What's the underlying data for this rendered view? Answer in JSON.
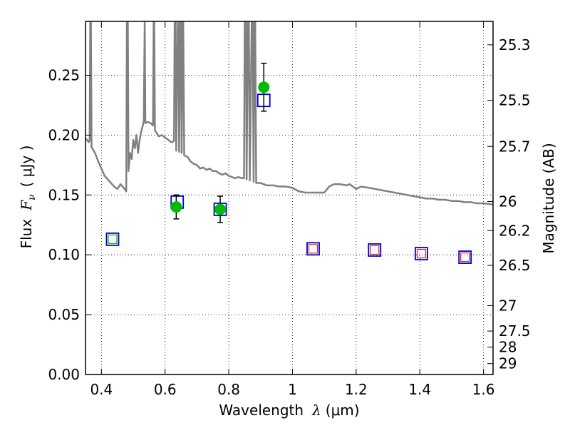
{
  "chart_data": {
    "type": "scatter",
    "xlabel_main": "Wavelength",
    "xlabel_symbol": "λ",
    "xlabel_unit": "(μm)",
    "ylabel_main": "Flux",
    "ylabel_symbol": "F",
    "ylabel_subscript": "ν",
    "ylabel_unit": "( μJy )",
    "y2label": "Magnitude (AB)",
    "xlim": [
      0.35,
      1.63
    ],
    "ylim": [
      0.0,
      0.295
    ],
    "grid": true,
    "x_ticks": [
      0.4,
      0.6,
      0.8,
      1.0,
      1.2,
      1.4,
      1.6
    ],
    "x_tick_labels": [
      "0.4",
      "0.6",
      "0.8",
      "1",
      "1.2",
      "1.4",
      "1.6"
    ],
    "y_ticks": [
      0.0,
      0.05,
      0.1,
      0.15,
      0.2,
      0.25
    ],
    "y_tick_labels": [
      "0.00",
      "0.05",
      "0.10",
      "0.15",
      "0.20",
      "0.25"
    ],
    "mag_ticks": [
      25.3,
      25.5,
      25.7,
      26,
      26.2,
      26.5,
      27,
      27.5,
      28,
      29
    ],
    "mag_tick_labels": [
      "25.3",
      "25.5",
      "25.7",
      "26",
      "26.2",
      "26.5",
      "27",
      "27.5",
      "28",
      "29"
    ],
    "colors": {
      "model": "#808080",
      "observed": "#00bb00",
      "model_photometry": "#0000cc",
      "inner_square_green": "#00bb00",
      "inner_square_red": "#dd2222",
      "errorbar": "#000000"
    },
    "model_spectrum": [
      [
        0.35,
        0.197
      ],
      [
        0.355,
        0.196
      ],
      [
        0.36,
        0.194
      ],
      [
        0.363,
        0.195
      ],
      [
        0.365,
        0.295
      ],
      [
        0.367,
        0.295
      ],
      [
        0.369,
        0.19
      ],
      [
        0.38,
        0.185
      ],
      [
        0.39,
        0.178
      ],
      [
        0.4,
        0.172
      ],
      [
        0.41,
        0.166
      ],
      [
        0.42,
        0.163
      ],
      [
        0.43,
        0.16
      ],
      [
        0.44,
        0.157
      ],
      [
        0.45,
        0.155
      ],
      [
        0.46,
        0.159
      ],
      [
        0.47,
        0.156
      ],
      [
        0.478,
        0.153
      ],
      [
        0.48,
        0.295
      ],
      [
        0.483,
        0.295
      ],
      [
        0.485,
        0.17
      ],
      [
        0.49,
        0.185
      ],
      [
        0.495,
        0.18
      ],
      [
        0.5,
        0.196
      ],
      [
        0.505,
        0.189
      ],
      [
        0.51,
        0.2
      ],
      [
        0.515,
        0.185
      ],
      [
        0.52,
        0.196
      ],
      [
        0.525,
        0.203
      ],
      [
        0.53,
        0.208
      ],
      [
        0.533,
        0.212
      ],
      [
        0.536,
        0.295
      ],
      [
        0.538,
        0.21
      ],
      [
        0.545,
        0.211
      ],
      [
        0.555,
        0.21
      ],
      [
        0.562,
        0.208
      ],
      [
        0.564,
        0.295
      ],
      [
        0.566,
        0.295
      ],
      [
        0.568,
        0.204
      ],
      [
        0.58,
        0.199
      ],
      [
        0.59,
        0.2
      ],
      [
        0.6,
        0.198
      ],
      [
        0.61,
        0.196
      ],
      [
        0.62,
        0.194
      ],
      [
        0.628,
        0.195
      ],
      [
        0.63,
        0.295
      ],
      [
        0.633,
        0.295
      ],
      [
        0.635,
        0.187
      ],
      [
        0.64,
        0.295
      ],
      [
        0.642,
        0.295
      ],
      [
        0.644,
        0.186
      ],
      [
        0.648,
        0.295
      ],
      [
        0.65,
        0.295
      ],
      [
        0.652,
        0.185
      ],
      [
        0.655,
        0.295
      ],
      [
        0.657,
        0.295
      ],
      [
        0.66,
        0.183
      ],
      [
        0.67,
        0.182
      ],
      [
        0.68,
        0.178
      ],
      [
        0.69,
        0.176
      ],
      [
        0.7,
        0.175
      ],
      [
        0.71,
        0.172
      ],
      [
        0.72,
        0.173
      ],
      [
        0.73,
        0.171
      ],
      [
        0.74,
        0.172
      ],
      [
        0.75,
        0.17
      ],
      [
        0.76,
        0.17
      ],
      [
        0.77,
        0.168
      ],
      [
        0.78,
        0.167
      ],
      [
        0.79,
        0.168
      ],
      [
        0.8,
        0.166
      ],
      [
        0.81,
        0.165
      ],
      [
        0.82,
        0.164
      ],
      [
        0.83,
        0.165
      ],
      [
        0.84,
        0.164
      ],
      [
        0.848,
        0.164
      ],
      [
        0.85,
        0.295
      ],
      [
        0.854,
        0.295
      ],
      [
        0.856,
        0.163
      ],
      [
        0.86,
        0.295
      ],
      [
        0.863,
        0.295
      ],
      [
        0.866,
        0.162
      ],
      [
        0.872,
        0.295
      ],
      [
        0.875,
        0.295
      ],
      [
        0.878,
        0.161
      ],
      [
        0.88,
        0.295
      ],
      [
        0.883,
        0.295
      ],
      [
        0.886,
        0.16
      ],
      [
        0.9,
        0.16
      ],
      [
        0.92,
        0.158
      ],
      [
        0.94,
        0.158
      ],
      [
        0.96,
        0.157
      ],
      [
        0.98,
        0.157
      ],
      [
        1.0,
        0.156
      ],
      [
        1.02,
        0.153
      ],
      [
        1.04,
        0.152
      ],
      [
        1.06,
        0.152
      ],
      [
        1.08,
        0.152
      ],
      [
        1.1,
        0.152
      ],
      [
        1.115,
        0.157
      ],
      [
        1.13,
        0.159
      ],
      [
        1.15,
        0.159
      ],
      [
        1.17,
        0.158
      ],
      [
        1.18,
        0.159
      ],
      [
        1.2,
        0.155
      ],
      [
        1.215,
        0.157
      ],
      [
        1.24,
        0.156
      ],
      [
        1.26,
        0.155
      ],
      [
        1.28,
        0.154
      ],
      [
        1.3,
        0.153
      ],
      [
        1.32,
        0.152
      ],
      [
        1.34,
        0.151
      ],
      [
        1.36,
        0.15
      ],
      [
        1.38,
        0.149
      ],
      [
        1.4,
        0.148
      ],
      [
        1.42,
        0.147
      ],
      [
        1.44,
        0.147
      ],
      [
        1.46,
        0.146
      ],
      [
        1.48,
        0.146
      ],
      [
        1.5,
        0.145
      ],
      [
        1.52,
        0.145
      ],
      [
        1.54,
        0.144
      ],
      [
        1.56,
        0.144
      ],
      [
        1.58,
        0.143
      ],
      [
        1.6,
        0.143
      ],
      [
        1.63,
        0.142
      ]
    ],
    "observed_points": [
      {
        "x": 0.635,
        "y": 0.14,
        "err": 0.01
      },
      {
        "x": 0.773,
        "y": 0.138,
        "err": 0.011
      },
      {
        "x": 0.91,
        "y": 0.24,
        "err": 0.02
      }
    ],
    "model_photometry": [
      {
        "x": 0.435,
        "y": 0.113,
        "inner": "green"
      },
      {
        "x": 0.638,
        "y": 0.144,
        "inner": "none"
      },
      {
        "x": 0.773,
        "y": 0.138,
        "inner": "none"
      },
      {
        "x": 0.91,
        "y": 0.229,
        "inner": "none"
      },
      {
        "x": 1.065,
        "y": 0.105,
        "inner": "red"
      },
      {
        "x": 1.258,
        "y": 0.104,
        "inner": "red"
      },
      {
        "x": 1.405,
        "y": 0.101,
        "inner": "red"
      },
      {
        "x": 1.542,
        "y": 0.098,
        "inner": "red"
      }
    ]
  }
}
